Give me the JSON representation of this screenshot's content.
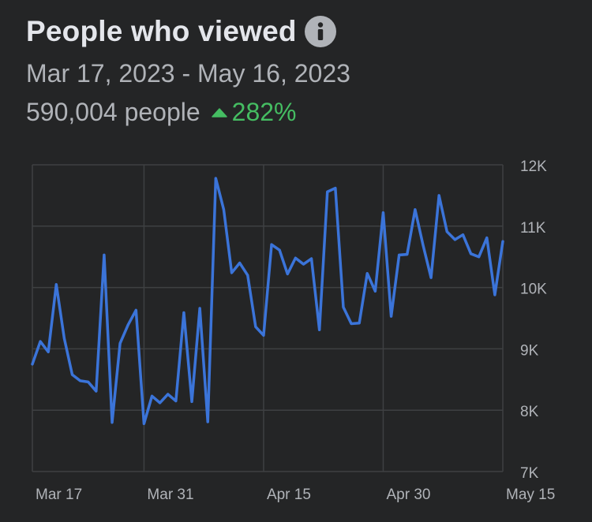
{
  "header": {
    "title": "People who viewed",
    "info_icon": "info-icon",
    "date_range": "Mar 17, 2023 - May 16, 2023",
    "people_count": "590,004 people",
    "change": "282%",
    "change_icon": "triangle-up-icon"
  },
  "colors": {
    "background": "#242526",
    "line": "#3b74d9",
    "grid": "#3e4042",
    "positive": "#45bd62"
  },
  "chart_data": {
    "type": "line",
    "y_ticks": [
      "12K",
      "11K",
      "10K",
      "9K",
      "8K",
      "7K"
    ],
    "x_ticks": [
      "Mar 17",
      "Mar 31",
      "Apr 15",
      "Apr 30",
      "May 15"
    ],
    "ylim": [
      7000,
      12000
    ],
    "y_tick_values": [
      12000,
      11000,
      10000,
      9000,
      8000,
      7000
    ],
    "x_tick_indices": [
      1,
      15,
      30,
      45,
      60
    ],
    "grid": true,
    "series": [
      {
        "values": [
          8750,
          9120,
          8950,
          10050,
          9170,
          8580,
          8480,
          8460,
          8310,
          10530,
          7800,
          9090,
          9390,
          9630,
          7780,
          8230,
          8120,
          8260,
          8150,
          9590,
          8140,
          9660,
          7810,
          11780,
          11270,
          10240,
          10400,
          10200,
          9360,
          9220,
          10700,
          10610,
          10220,
          10480,
          10380,
          10470,
          9310,
          11560,
          11620,
          9680,
          9410,
          9420,
          10230,
          9940,
          11220,
          9530,
          10530,
          10540,
          11270,
          10690,
          10160,
          11500,
          10910,
          10780,
          10860,
          10550,
          10500,
          10810,
          9880,
          10750
        ]
      }
    ]
  }
}
